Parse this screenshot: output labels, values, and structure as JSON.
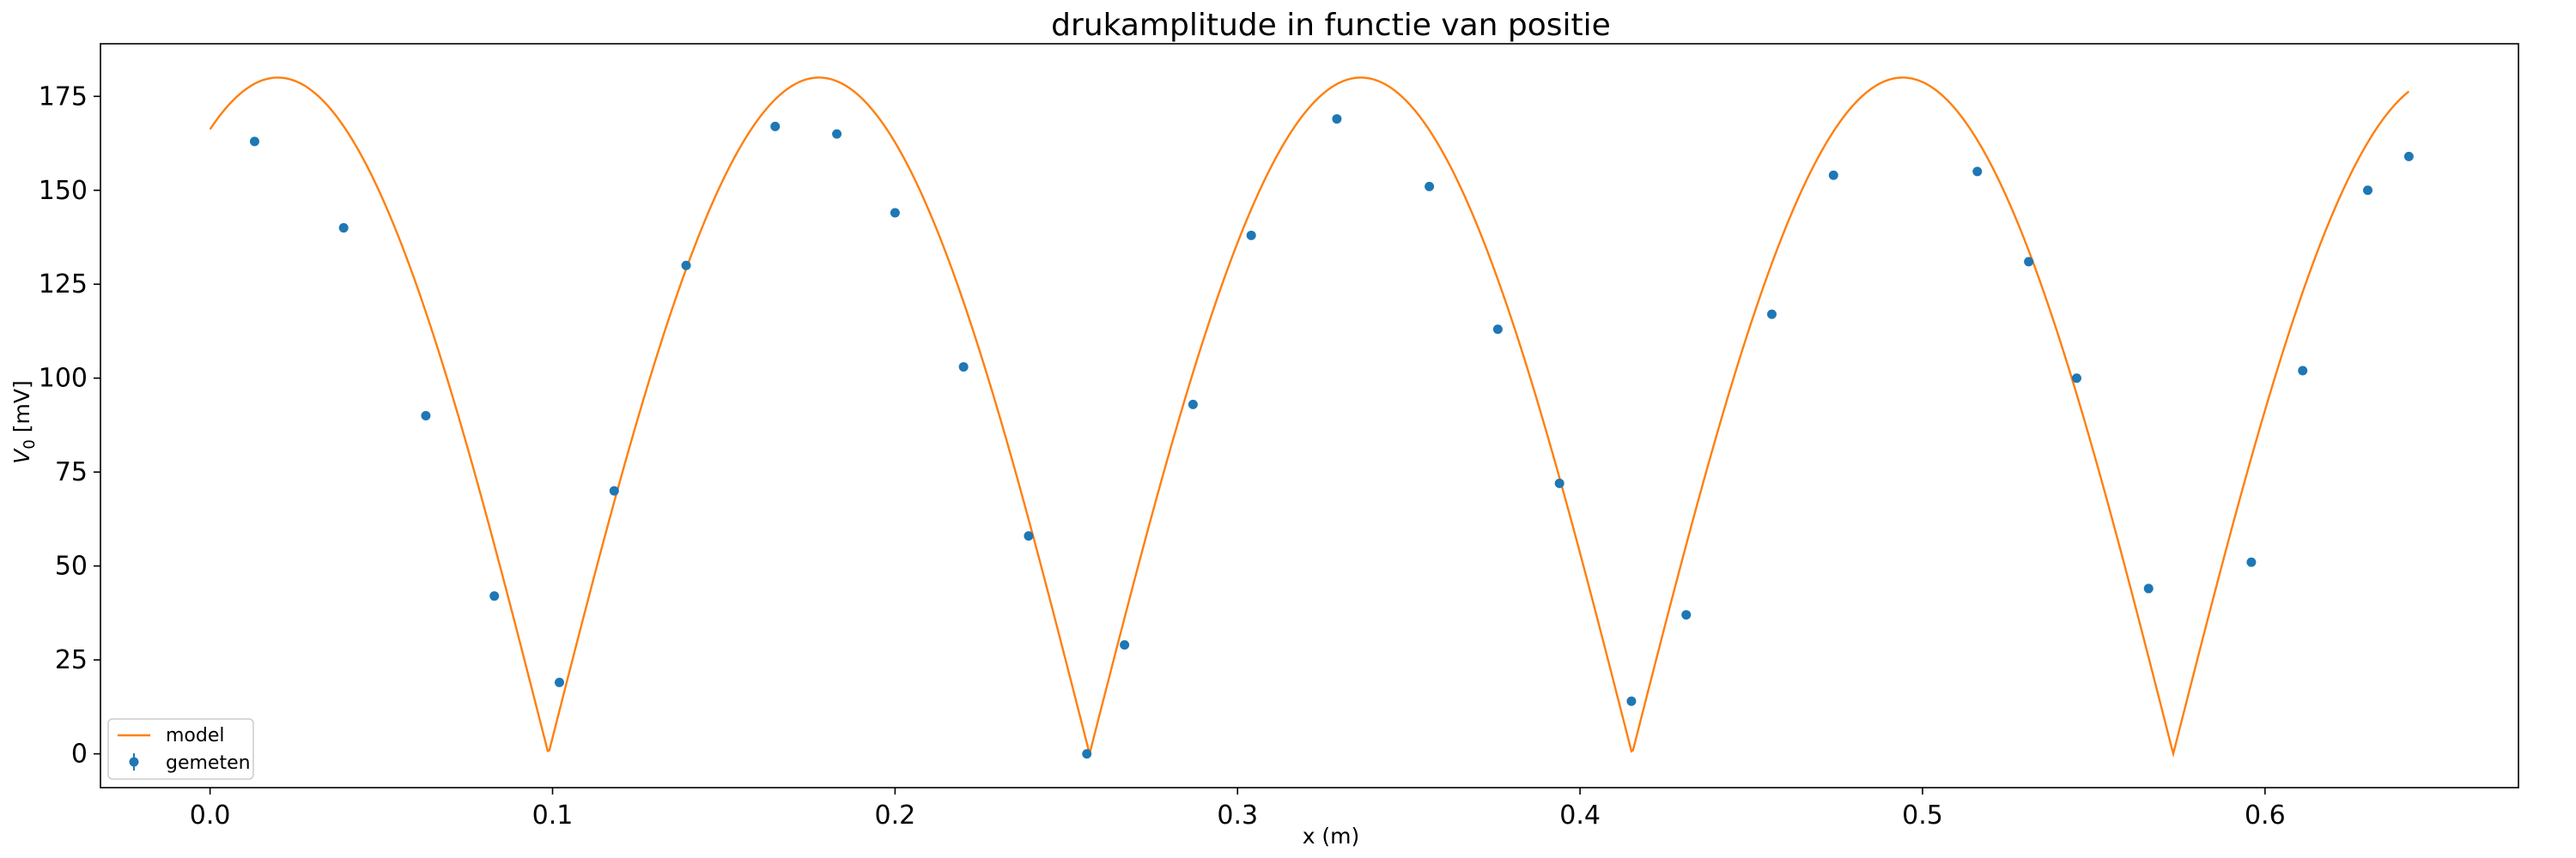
{
  "chart_data": {
    "type": "scatter",
    "title": "drukamplitude in functie van positie",
    "xlabel": "x (m)",
    "ylabel": "V_0 [mV]",
    "ylabel_main": "V",
    "ylabel_sub": "0",
    "ylabel_unit": " [mV]",
    "xlim": [
      -0.032,
      0.674
    ],
    "ylim": [
      -9,
      189
    ],
    "xticks": [
      0.0,
      0.1,
      0.2,
      0.3,
      0.4,
      0.5,
      0.6
    ],
    "xtick_labels": [
      "0.0",
      "0.1",
      "0.2",
      "0.3",
      "0.4",
      "0.5",
      "0.6"
    ],
    "yticks": [
      0,
      25,
      50,
      75,
      100,
      125,
      150,
      175
    ],
    "ytick_labels": [
      "0",
      "25",
      "50",
      "75",
      "100",
      "125",
      "150",
      "175"
    ],
    "grid": false,
    "legend_position": "lower-left",
    "legend": [
      {
        "label": "model",
        "kind": "line",
        "color": "#ff7f0e"
      },
      {
        "label": "gemeten",
        "kind": "marker",
        "color": "#1f77b4"
      }
    ],
    "series": [
      {
        "name": "model",
        "kind": "line",
        "color": "#ff7f0e",
        "model": {
          "amplitude": 180,
          "zeros": [
            0.0988,
            0.2568,
            0.4152,
            0.5732
          ],
          "x_start": 0.0,
          "x_end": 0.642
        }
      },
      {
        "name": "gemeten",
        "kind": "scatter",
        "color": "#1f77b4",
        "points": [
          {
            "x": 0.013,
            "y": 163
          },
          {
            "x": 0.039,
            "y": 140
          },
          {
            "x": 0.063,
            "y": 90
          },
          {
            "x": 0.083,
            "y": 42
          },
          {
            "x": 0.102,
            "y": 19
          },
          {
            "x": 0.118,
            "y": 70
          },
          {
            "x": 0.139,
            "y": 130
          },
          {
            "x": 0.165,
            "y": 167
          },
          {
            "x": 0.183,
            "y": 165
          },
          {
            "x": 0.2,
            "y": 144
          },
          {
            "x": 0.22,
            "y": 103
          },
          {
            "x": 0.239,
            "y": 58
          },
          {
            "x": 0.256,
            "y": 0
          },
          {
            "x": 0.267,
            "y": 29
          },
          {
            "x": 0.287,
            "y": 93
          },
          {
            "x": 0.304,
            "y": 138
          },
          {
            "x": 0.329,
            "y": 169
          },
          {
            "x": 0.356,
            "y": 151
          },
          {
            "x": 0.376,
            "y": 113
          },
          {
            "x": 0.394,
            "y": 72
          },
          {
            "x": 0.415,
            "y": 14
          },
          {
            "x": 0.431,
            "y": 37
          },
          {
            "x": 0.456,
            "y": 117
          },
          {
            "x": 0.474,
            "y": 154
          },
          {
            "x": 0.516,
            "y": 155
          },
          {
            "x": 0.531,
            "y": 131
          },
          {
            "x": 0.545,
            "y": 100
          },
          {
            "x": 0.566,
            "y": 44
          },
          {
            "x": 0.596,
            "y": 51
          },
          {
            "x": 0.611,
            "y": 102
          },
          {
            "x": 0.63,
            "y": 150
          },
          {
            "x": 0.642,
            "y": 159
          }
        ]
      }
    ]
  }
}
